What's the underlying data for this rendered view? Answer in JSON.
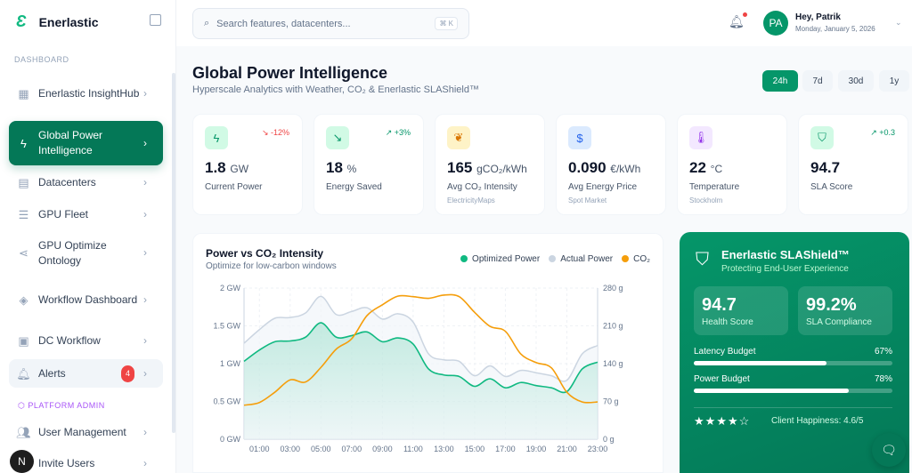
{
  "app": {
    "name": "Enerlastic"
  },
  "sidebar": {
    "section_dashboard": "DASHBOARD",
    "section_admin": "PLATFORM ADMIN",
    "items": [
      {
        "label": "Enerlastic InsightHub",
        "icon": "grid-icon"
      },
      {
        "label": "Global Power Intelligence",
        "icon": "bolt-icon",
        "active": true
      },
      {
        "label": "Datacenters",
        "icon": "building-icon"
      },
      {
        "label": "GPU Fleet",
        "icon": "server-icon"
      },
      {
        "label": "GPU Optimize Ontology",
        "icon": "share-icon"
      },
      {
        "label": "Workflow Dashboard",
        "icon": "layers-icon"
      },
      {
        "label": "DC Workflow",
        "icon": "calendar-icon"
      },
      {
        "label": "Alerts",
        "icon": "bell-icon",
        "badge": "4"
      },
      {
        "label": "User Management",
        "icon": "users-icon"
      },
      {
        "label": "Invite Users",
        "icon": "user-plus-icon"
      }
    ],
    "floating_button": "N"
  },
  "header": {
    "search_placeholder": "Search features, datacenters...",
    "shortcut": "⌘ K",
    "user_initials": "PA",
    "greeting": "Hey, Patrik",
    "date": "Monday, January 5, 2026"
  },
  "page": {
    "title": "Global Power Intelligence",
    "subtitle": "Hyperscale Analytics with Weather, CO₂ & Enerlastic SLAShield™",
    "ranges": [
      "24h",
      "7d",
      "30d",
      "1y"
    ],
    "selected_range": "24h"
  },
  "kpis": [
    {
      "value": "1.8",
      "unit": "GW",
      "label": "Current Power",
      "trend": "↘ -12%",
      "trend_color": "#ef4444",
      "icon": "bolt-icon",
      "icon_bg": "#d1fae5",
      "icon_color": "#059669",
      "glyph": "ϟ"
    },
    {
      "value": "18",
      "unit": "%",
      "label": "Energy Saved",
      "trend": "↗ +3%",
      "trend_color": "#059669",
      "icon": "trend-down-icon",
      "icon_bg": "#d1fae5",
      "icon_color": "#059669",
      "glyph": "↘"
    },
    {
      "value": "165",
      "unit": "gCO₂/kWh",
      "label": "Avg CO₂ Intensity",
      "source": "ElectricityMaps",
      "icon": "leaf-icon",
      "icon_bg": "#fef3c7",
      "icon_color": "#d97706",
      "glyph": "❦"
    },
    {
      "value": "0.090",
      "unit": "€/kWh",
      "label": "Avg Energy Price",
      "source": "Spot Market",
      "icon": "dollar-icon",
      "icon_bg": "#dbeafe",
      "icon_color": "#2563eb",
      "glyph": "$"
    },
    {
      "value": "22",
      "unit": "°C",
      "label": "Temperature",
      "source": "Stockholm",
      "icon": "thermometer-icon",
      "icon_bg": "#f3e8ff",
      "icon_color": "#9333ea",
      "glyph": "🌡"
    },
    {
      "value": "94.7",
      "unit": "",
      "label": "SLA Score",
      "trend": "↗ +0.3",
      "trend_color": "#059669",
      "icon": "shield-icon",
      "icon_bg": "#d1fae5",
      "icon_color": "#059669",
      "glyph": "⛉"
    }
  ],
  "chart_data": {
    "type": "line",
    "title": "Power vs CO₂ Intensity",
    "subtitle": "Optimize for low-carbon windows",
    "x": [
      "00:00",
      "01:00",
      "02:00",
      "03:00",
      "04:00",
      "05:00",
      "06:00",
      "07:00",
      "08:00",
      "09:00",
      "10:00",
      "11:00",
      "12:00",
      "13:00",
      "14:00",
      "15:00",
      "16:00",
      "17:00",
      "18:00",
      "19:00",
      "20:00",
      "21:00",
      "22:00",
      "23:00"
    ],
    "x_tick_labels": [
      "01:00",
      "03:00",
      "05:00",
      "07:00",
      "09:00",
      "11:00",
      "13:00",
      "15:00",
      "17:00",
      "19:00",
      "21:00",
      "23:00"
    ],
    "y_left": {
      "ticks": [
        "0 GW",
        "0.5 GW",
        "1 GW",
        "1.5 GW",
        "2 GW"
      ],
      "range": [
        0,
        2
      ]
    },
    "y_right": {
      "ticks": [
        "0 g",
        "70 g",
        "140 g",
        "210 g",
        "280 g"
      ],
      "range": [
        0,
        280
      ]
    },
    "grid": true,
    "legend": "top-right",
    "series": [
      {
        "name": "Optimized Power",
        "axis": "left",
        "color": "#10b981",
        "values": [
          1.03,
          1.18,
          1.29,
          1.3,
          1.35,
          1.54,
          1.35,
          1.37,
          1.42,
          1.29,
          1.34,
          1.26,
          0.93,
          0.85,
          0.83,
          0.7,
          0.8,
          0.68,
          0.75,
          0.71,
          0.68,
          0.63,
          0.93,
          1.02
        ]
      },
      {
        "name": "Actual Power",
        "axis": "left",
        "color": "#cbd5e1",
        "values": [
          1.27,
          1.45,
          1.6,
          1.61,
          1.67,
          1.89,
          1.65,
          1.69,
          1.74,
          1.59,
          1.66,
          1.55,
          1.13,
          1.05,
          1.03,
          0.84,
          0.97,
          0.83,
          0.91,
          0.88,
          0.84,
          0.78,
          1.13,
          1.24
        ]
      },
      {
        "name": "CO₂",
        "axis": "right",
        "color": "#f59e0b",
        "values": [
          63,
          68,
          87,
          110,
          106,
          133,
          167,
          186,
          229,
          249,
          265,
          264,
          261,
          267,
          264,
          235,
          209,
          200,
          158,
          142,
          132,
          87,
          69,
          69
        ]
      }
    ]
  },
  "slashield": {
    "title": "Enerlastic SLAShield™",
    "subtitle": "Protecting End-User Experience",
    "health": "94.7",
    "health_label": "Health Score",
    "compliance": "99.2%",
    "compliance_label": "SLA Compliance",
    "budgets": [
      {
        "label": "Latency Budget",
        "value": "67%",
        "fraction": 0.67
      },
      {
        "label": "Power Budget",
        "value": "78%",
        "fraction": 0.78
      }
    ],
    "rating": 4,
    "rating_max": 5,
    "happiness": "Client Happiness: 4.6/5"
  }
}
